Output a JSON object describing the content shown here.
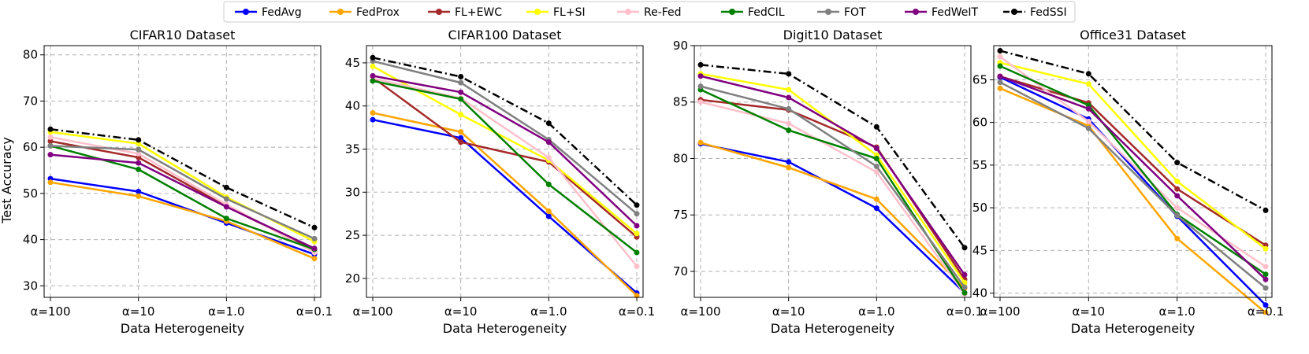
{
  "legend": [
    "FedAvg",
    "FedProx",
    "FL+EWC",
    "FL+SI",
    "Re-Fed",
    "FedCIL",
    "FOT",
    "FedWeIT",
    "FedSSI"
  ],
  "colors": {
    "FedAvg": "#0000ff",
    "FedProx": "#ffa500",
    "FL+EWC": "#a52a2a",
    "FL+SI": "#ffff00",
    "Re-Fed": "#ffc0cb",
    "FedCIL": "#008000",
    "FOT": "#808080",
    "FedWeIT": "#800080",
    "FedSSI": "#000000"
  },
  "chart_data": [
    {
      "type": "line",
      "title": "CIFAR10 Dataset",
      "xlabel": "Data Heterogeneity",
      "ylabel": "Test Accuracy",
      "categories": [
        "α=100",
        "α=10",
        "α=1.0",
        "α=0.1"
      ],
      "ylim": [
        27.5,
        82
      ],
      "yticks": [
        30,
        40,
        50,
        60,
        70,
        80
      ],
      "grid": true,
      "series": [
        {
          "name": "FedAvg",
          "values": [
            53.2,
            50.4,
            43.6,
            36.8
          ]
        },
        {
          "name": "FedProx",
          "values": [
            52.4,
            49.4,
            44.0,
            35.9
          ]
        },
        {
          "name": "FL+EWC",
          "values": [
            61.3,
            57.8,
            47.2,
            37.7
          ]
        },
        {
          "name": "FL+SI",
          "values": [
            63.3,
            60.8,
            49.2,
            39.6
          ]
        },
        {
          "name": "Re-Fed",
          "values": [
            62.2,
            58.6,
            47.6,
            37.2
          ]
        },
        {
          "name": "FedCIL",
          "values": [
            60.3,
            55.2,
            44.6,
            37.9
          ]
        },
        {
          "name": "FOT",
          "values": [
            60.3,
            59.5,
            48.8,
            40.2
          ]
        },
        {
          "name": "FedWeIT",
          "values": [
            58.4,
            56.6,
            47.1,
            38.1
          ]
        },
        {
          "name": "FedSSI",
          "values": [
            63.9,
            61.6,
            51.3,
            42.6
          ]
        }
      ]
    },
    {
      "type": "line",
      "title": "CIFAR100 Dataset",
      "xlabel": "Data Heterogeneity",
      "ylabel": "",
      "categories": [
        "α=100",
        "α=10",
        "α=1.0",
        "α=0.1"
      ],
      "ylim": [
        17.8,
        47
      ],
      "yticks": [
        20,
        25,
        30,
        35,
        40,
        45
      ],
      "grid": true,
      "series": [
        {
          "name": "FedAvg",
          "values": [
            38.4,
            36.3,
            27.2,
            18.3
          ]
        },
        {
          "name": "FedProx",
          "values": [
            39.2,
            37.0,
            27.8,
            18.0
          ]
        },
        {
          "name": "FL+EWC",
          "values": [
            43.3,
            35.8,
            33.5,
            24.8
          ]
        },
        {
          "name": "FL+SI",
          "values": [
            44.6,
            39.0,
            33.7,
            25.2
          ]
        },
        {
          "name": "Re-Fed",
          "values": [
            43.2,
            40.9,
            34.0,
            21.4
          ]
        },
        {
          "name": "FedCIL",
          "values": [
            42.9,
            40.8,
            30.9,
            23.0
          ]
        },
        {
          "name": "FOT",
          "values": [
            45.2,
            42.7,
            36.1,
            27.5
          ]
        },
        {
          "name": "FedWeIT",
          "values": [
            43.5,
            41.6,
            35.8,
            26.1
          ]
        },
        {
          "name": "FedSSI",
          "values": [
            45.6,
            43.4,
            38.0,
            28.5
          ]
        }
      ]
    },
    {
      "type": "line",
      "title": "Digit10 Dataset",
      "xlabel": "Data Heterogeneity",
      "ylabel": "",
      "categories": [
        "α=100",
        "α=10",
        "α=1.0",
        "α=0.1"
      ],
      "ylim": [
        67.7,
        90
      ],
      "yticks": [
        70,
        75,
        80,
        85,
        90
      ],
      "grid": true,
      "series": [
        {
          "name": "FedAvg",
          "values": [
            81.3,
            79.7,
            75.6,
            68.1
          ]
        },
        {
          "name": "FedProx",
          "values": [
            81.4,
            79.2,
            76.4,
            68.5
          ]
        },
        {
          "name": "FL+EWC",
          "values": [
            85.2,
            84.3,
            81.0,
            69.3
          ]
        },
        {
          "name": "FL+SI",
          "values": [
            87.5,
            86.1,
            80.3,
            69.0
          ]
        },
        {
          "name": "Re-Fed",
          "values": [
            85.0,
            83.1,
            78.8,
            68.0
          ]
        },
        {
          "name": "FedCIL",
          "values": [
            86.1,
            82.5,
            80.0,
            68.1
          ]
        },
        {
          "name": "FOT",
          "values": [
            86.4,
            84.4,
            79.3,
            68.6
          ]
        },
        {
          "name": "FedWeIT",
          "values": [
            87.3,
            85.4,
            80.9,
            69.7
          ]
        },
        {
          "name": "FedSSI",
          "values": [
            88.3,
            87.5,
            82.8,
            72.1
          ]
        }
      ]
    },
    {
      "type": "line",
      "title": "Office31 Dataset",
      "xlabel": "Data Heterogeneity",
      "ylabel": "",
      "categories": [
        "α=100",
        "α=10",
        "α=1.0",
        "α=0.1"
      ],
      "ylim": [
        39.5,
        69
      ],
      "yticks": [
        40,
        45,
        50,
        55,
        60,
        65
      ],
      "grid": true,
      "series": [
        {
          "name": "FedAvg",
          "values": [
            65.3,
            60.4,
            49.0,
            38.6
          ]
        },
        {
          "name": "FedProx",
          "values": [
            64.0,
            59.6,
            46.4,
            37.7
          ]
        },
        {
          "name": "FL+EWC",
          "values": [
            65.4,
            62.3,
            52.2,
            45.6
          ]
        },
        {
          "name": "FL+SI",
          "values": [
            67.0,
            64.5,
            53.1,
            45.2
          ]
        },
        {
          "name": "Re-Fed",
          "values": [
            67.7,
            60.1,
            50.0,
            43.1
          ]
        },
        {
          "name": "FedCIL",
          "values": [
            66.6,
            62.0,
            49.2,
            42.2
          ]
        },
        {
          "name": "FOT",
          "values": [
            64.7,
            59.3,
            49.1,
            40.6
          ]
        },
        {
          "name": "FedWeIT",
          "values": [
            65.4,
            61.6,
            51.4,
            41.6
          ]
        },
        {
          "name": "FedSSI",
          "values": [
            68.4,
            65.7,
            55.3,
            49.7
          ]
        }
      ]
    }
  ]
}
